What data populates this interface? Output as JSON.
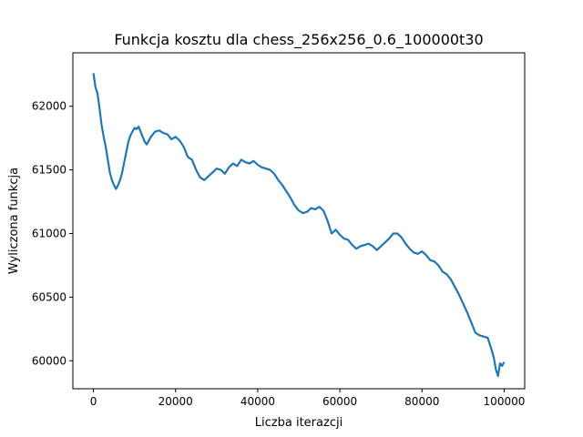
{
  "chart_data": {
    "type": "line",
    "title": "Funkcja kosztu dla chess_256x256_0.6_100000t30",
    "xlabel": "Liczba iterazcji",
    "ylabel": "Wyliczona funkcja",
    "xlim": [
      -5000,
      105000
    ],
    "ylim": [
      59780,
      62420
    ],
    "xticks": [
      0,
      20000,
      40000,
      60000,
      80000,
      100000
    ],
    "yticks": [
      60000,
      60500,
      61000,
      61500,
      62000
    ],
    "grid": false,
    "legend": "none",
    "line_color": "#1f77b4",
    "series": [
      {
        "x": [
          0,
          500,
          1000,
          1500,
          2000,
          2500,
          3000,
          3500,
          4000,
          4500,
          5000,
          5500,
          6000,
          6500,
          7000,
          7500,
          8000,
          8500,
          9000,
          9500,
          10000,
          10500,
          11000,
          11500,
          12000,
          12500,
          13000,
          13500,
          14000,
          15000,
          16000,
          17000,
          18000,
          19000,
          20000,
          21000,
          22000,
          23000,
          24000,
          25000,
          26000,
          27000,
          28000,
          29000,
          30000,
          31000,
          32000,
          33000,
          34000,
          35000,
          36000,
          37000,
          38000,
          39000,
          40000,
          41000,
          42000,
          43000,
          44000,
          45000,
          46000,
          47000,
          48000,
          49000,
          50000,
          51000,
          52000,
          53000,
          54000,
          55000,
          56000,
          57000,
          58000,
          59000,
          60000,
          61000,
          62000,
          63000,
          64000,
          65000,
          66000,
          67000,
          68000,
          69000,
          70000,
          71000,
          72000,
          73000,
          74000,
          75000,
          76000,
          77000,
          78000,
          79000,
          80000,
          81000,
          82000,
          83000,
          84000,
          85000,
          86000,
          87000,
          88000,
          89000,
          90000,
          91000,
          92000,
          93000,
          94000,
          95000,
          96000,
          97000,
          97500,
          98000,
          98500,
          99000,
          99500,
          100000
        ],
        "y": [
          62260,
          62150,
          62100,
          61980,
          61850,
          61760,
          61680,
          61580,
          61480,
          61420,
          61380,
          61350,
          61380,
          61420,
          61480,
          61560,
          61640,
          61720,
          61770,
          61800,
          61830,
          61820,
          61840,
          61800,
          61760,
          61720,
          61700,
          61730,
          61760,
          61800,
          61810,
          61790,
          61780,
          61740,
          61760,
          61730,
          61680,
          61600,
          61580,
          61500,
          61440,
          61420,
          61450,
          61480,
          61510,
          61500,
          61470,
          61520,
          61550,
          61530,
          61580,
          61560,
          61550,
          61570,
          61540,
          61520,
          61510,
          61500,
          61470,
          61420,
          61380,
          61330,
          61280,
          61220,
          61180,
          61160,
          61170,
          61200,
          61190,
          61210,
          61180,
          61100,
          61000,
          61030,
          60990,
          60960,
          60950,
          60910,
          60880,
          60900,
          60910,
          60920,
          60900,
          60870,
          60900,
          60930,
          60960,
          61000,
          61000,
          60970,
          60920,
          60880,
          60850,
          60840,
          60860,
          60830,
          60790,
          60780,
          60750,
          60700,
          60680,
          60640,
          60580,
          60520,
          60450,
          60380,
          60300,
          60220,
          60200,
          60190,
          60180,
          60080,
          60020,
          59930,
          59880,
          59980,
          59960,
          59990
        ]
      }
    ]
  }
}
